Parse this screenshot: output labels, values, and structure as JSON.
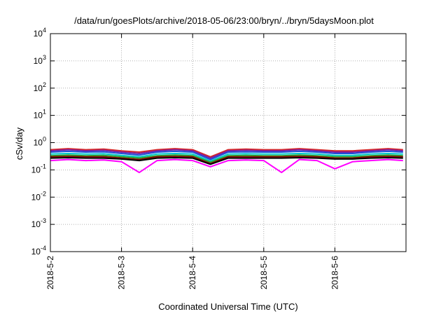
{
  "chart_data": {
    "type": "line",
    "title": "/data/run/goesPlots/archive/2018-05-06/23:00/bryn/../bryn/5daysMoon.plot",
    "xlabel": "Coordinated Universal Time (UTC)",
    "ylabel": "cSv/day",
    "yscale": "log",
    "ylim": [
      0.0001,
      10000
    ],
    "y_ticks": [
      {
        "base": "10",
        "exp": "-4",
        "value": 0.0001
      },
      {
        "base": "10",
        "exp": "-3",
        "value": 0.001
      },
      {
        "base": "10",
        "exp": "-2",
        "value": 0.01
      },
      {
        "base": "10",
        "exp": "-1",
        "value": 0.1
      },
      {
        "base": "10",
        "exp": "0",
        "value": 1
      },
      {
        "base": "10",
        "exp": "1",
        "value": 10
      },
      {
        "base": "10",
        "exp": "2",
        "value": 100
      },
      {
        "base": "10",
        "exp": "3",
        "value": 1000
      },
      {
        "base": "10",
        "exp": "4",
        "value": 10000
      }
    ],
    "xlim": [
      "2018-05-02T00:00",
      "2018-05-06T23:00"
    ],
    "x_ticks": [
      {
        "label": "2018-5-2",
        "value": "2018-05-02T00:00"
      },
      {
        "label": "2018-5-3",
        "value": "2018-05-03T00:00"
      },
      {
        "label": "2018-5-4",
        "value": "2018-05-04T00:00"
      },
      {
        "label": "2018-5-5",
        "value": "2018-05-05T00:00"
      },
      {
        "label": "2018-5-6",
        "value": "2018-05-06T00:00"
      }
    ],
    "grid": true,
    "x": [
      "2018-05-02T00:00",
      "2018-05-02T06:00",
      "2018-05-02T12:00",
      "2018-05-02T18:00",
      "2018-05-03T00:00",
      "2018-05-03T06:00",
      "2018-05-03T12:00",
      "2018-05-03T18:00",
      "2018-05-04T00:00",
      "2018-05-04T06:00",
      "2018-05-04T12:00",
      "2018-05-04T18:00",
      "2018-05-05T00:00",
      "2018-05-05T06:00",
      "2018-05-05T12:00",
      "2018-05-05T18:00",
      "2018-05-06T00:00",
      "2018-05-06T06:00",
      "2018-05-06T12:00",
      "2018-05-06T18:00",
      "2018-05-06T23:00"
    ],
    "series": [
      {
        "color": "#d62728",
        "values": [
          0.55,
          0.6,
          0.55,
          0.58,
          0.5,
          0.45,
          0.55,
          0.6,
          0.55,
          0.3,
          0.55,
          0.58,
          0.55,
          0.55,
          0.6,
          0.55,
          0.5,
          0.5,
          0.55,
          0.6,
          0.55
        ]
      },
      {
        "color": "#7b1fa2",
        "values": [
          0.5,
          0.55,
          0.5,
          0.52,
          0.45,
          0.4,
          0.5,
          0.55,
          0.5,
          0.27,
          0.5,
          0.52,
          0.5,
          0.5,
          0.55,
          0.5,
          0.45,
          0.45,
          0.5,
          0.55,
          0.5
        ]
      },
      {
        "color": "#1f4fd6",
        "values": [
          0.45,
          0.48,
          0.45,
          0.46,
          0.4,
          0.35,
          0.45,
          0.48,
          0.45,
          0.24,
          0.45,
          0.46,
          0.45,
          0.45,
          0.48,
          0.45,
          0.4,
          0.4,
          0.45,
          0.48,
          0.45
        ]
      },
      {
        "color": "#00c8c8",
        "values": [
          0.38,
          0.4,
          0.38,
          0.39,
          0.34,
          0.3,
          0.38,
          0.4,
          0.38,
          0.21,
          0.38,
          0.39,
          0.38,
          0.38,
          0.4,
          0.38,
          0.34,
          0.34,
          0.38,
          0.4,
          0.38
        ]
      },
      {
        "color": "#2ca02c",
        "values": [
          0.33,
          0.35,
          0.33,
          0.34,
          0.3,
          0.27,
          0.33,
          0.35,
          0.33,
          0.19,
          0.33,
          0.34,
          0.33,
          0.33,
          0.35,
          0.33,
          0.3,
          0.3,
          0.33,
          0.35,
          0.33
        ]
      },
      {
        "color": "#8b0000",
        "values": [
          0.3,
          0.31,
          0.3,
          0.3,
          0.27,
          0.24,
          0.3,
          0.31,
          0.3,
          0.17,
          0.3,
          0.3,
          0.3,
          0.3,
          0.31,
          0.3,
          0.27,
          0.27,
          0.3,
          0.31,
          0.3
        ]
      },
      {
        "color": "#000000",
        "values": [
          0.27,
          0.28,
          0.27,
          0.27,
          0.25,
          0.22,
          0.27,
          0.28,
          0.27,
          0.16,
          0.27,
          0.27,
          0.27,
          0.27,
          0.28,
          0.27,
          0.25,
          0.25,
          0.27,
          0.28,
          0.27
        ]
      },
      {
        "color": "#ff00ff",
        "values": [
          0.22,
          0.24,
          0.22,
          0.23,
          0.2,
          0.08,
          0.22,
          0.24,
          0.22,
          0.13,
          0.22,
          0.23,
          0.22,
          0.08,
          0.24,
          0.22,
          0.11,
          0.2,
          0.22,
          0.24,
          0.22
        ]
      }
    ]
  }
}
